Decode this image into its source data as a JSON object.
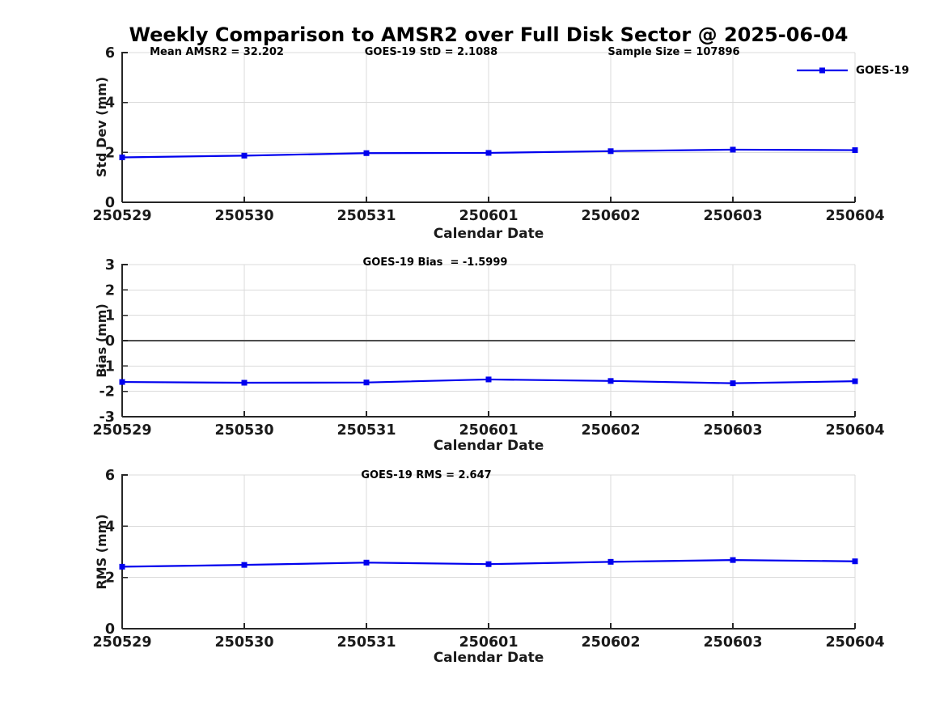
{
  "title": "Weekly Comparison to AMSR2 over Full Disk Sector @ 2025-06-04",
  "colors": {
    "line": "#0000EE",
    "grid": "#DBDBDB",
    "zero_line": "#4D4D4D",
    "axis": "#262626",
    "text": "#000000"
  },
  "stats": {
    "mean_amsr2": "32.202",
    "goes19_std": "2.1088",
    "sample_size": "107896",
    "goes19_bias": "-1.5999",
    "goes19_rms": "2.647"
  },
  "chart_data": [
    {
      "type": "line",
      "categories": [
        "250529",
        "250530",
        "250531",
        "250601",
        "250602",
        "250603",
        "250604"
      ],
      "series": [
        {
          "name": "GOES-19",
          "values": [
            1.8,
            1.87,
            1.97,
            1.98,
            2.05,
            2.11,
            2.09
          ],
          "color": "#0000EE",
          "marker": "square"
        }
      ],
      "annotations": [
        "Mean AMSR2 = 32.202",
        "GOES-19 StD = 2.1088",
        "Sample Size = 107896"
      ],
      "xlabel": "Calendar Date",
      "ylabel": "Std Dev (mm)",
      "ylim": [
        0,
        6
      ],
      "yticks": [
        0,
        2,
        4,
        6
      ],
      "grid": true,
      "zero_line": false,
      "legend": {
        "label": "GOES-19",
        "position": "top-right"
      }
    },
    {
      "type": "line",
      "categories": [
        "250529",
        "250530",
        "250531",
        "250601",
        "250602",
        "250603",
        "250604"
      ],
      "series": [
        {
          "name": "GOES-19",
          "values": [
            -1.63,
            -1.66,
            -1.65,
            -1.53,
            -1.59,
            -1.68,
            -1.6
          ],
          "color": "#0000EE",
          "marker": "square"
        }
      ],
      "annotations": [
        "GOES-19 Bias  = -1.5999"
      ],
      "xlabel": "Calendar Date",
      "ylabel": "Bias (mm)",
      "ylim": [
        -3,
        3
      ],
      "yticks": [
        -3,
        -2,
        -1,
        0,
        1,
        2,
        3
      ],
      "grid": true,
      "zero_line": true,
      "legend": null
    },
    {
      "type": "line",
      "categories": [
        "250529",
        "250530",
        "250531",
        "250601",
        "250602",
        "250603",
        "250604"
      ],
      "series": [
        {
          "name": "GOES-19",
          "values": [
            2.42,
            2.49,
            2.58,
            2.52,
            2.61,
            2.68,
            2.63
          ],
          "color": "#0000EE",
          "marker": "square"
        }
      ],
      "annotations": [
        "GOES-19 RMS = 2.647"
      ],
      "xlabel": "Calendar Date",
      "ylabel": "RMS (mm)",
      "ylim": [
        0,
        6
      ],
      "yticks": [
        0,
        2,
        4,
        6
      ],
      "grid": true,
      "zero_line": false,
      "legend": null
    }
  ]
}
